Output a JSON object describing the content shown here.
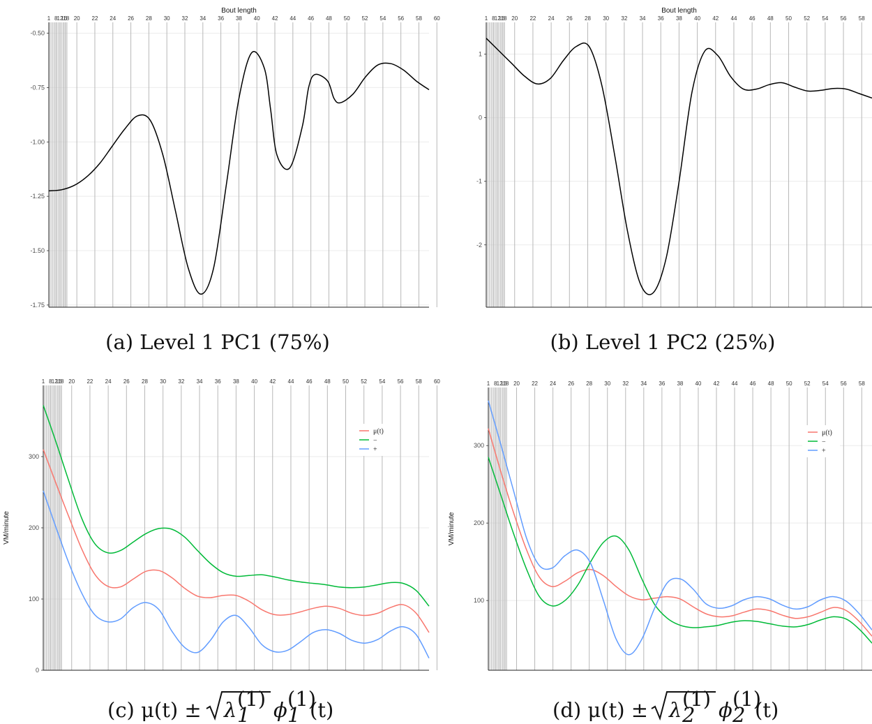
{
  "chart_data": [
    {
      "id": "a",
      "type": "line",
      "caption": "(a) Level 1 PC1 (75%)",
      "top_axis_label": "Bout length",
      "top_ticks": [
        1,
        8,
        12,
        16,
        18,
        20,
        22,
        24,
        26,
        28,
        30,
        32,
        34,
        36,
        38,
        40,
        42,
        44,
        46,
        48,
        50,
        52,
        54,
        56,
        58,
        60
      ],
      "y_ticks": [
        -1.75,
        -1.5,
        -1.25,
        -1.0,
        -0.75,
        -0.5
      ],
      "y_tick_labels": [
        "-1.75",
        "-1.50",
        "-1.25",
        "-1.00",
        "-0.75",
        "-0.50"
      ],
      "ylim": [
        -1.76,
        -0.45
      ],
      "xlim": [
        0,
        60
      ],
      "ylabel": "",
      "grid": true,
      "series": [
        {
          "color": "#000000",
          "x": [
            0,
            2,
            4,
            6,
            8,
            10,
            12,
            14,
            16,
            18,
            20,
            22,
            24,
            26,
            28,
            30,
            32,
            34,
            35,
            36,
            38,
            40,
            41,
            42,
            44,
            45,
            46,
            48,
            50,
            52,
            54,
            56,
            58,
            60
          ],
          "y": [
            -1.225,
            -1.22,
            -1.2,
            -1.16,
            -1.1,
            -1.02,
            -0.94,
            -0.88,
            -0.9,
            -1.06,
            -1.32,
            -1.58,
            -1.7,
            -1.58,
            -1.2,
            -0.8,
            -0.59,
            -0.66,
            -0.85,
            -1.06,
            -1.12,
            -0.93,
            -0.75,
            -0.69,
            -0.72,
            -0.8,
            -0.82,
            -0.78,
            -0.7,
            -0.645,
            -0.64,
            -0.67,
            -0.72,
            -0.76
          ]
        }
      ]
    },
    {
      "id": "b",
      "type": "line",
      "caption": "(b) Level 1 PC2 (25%)",
      "top_axis_label": "Bout length",
      "top_ticks": [
        1,
        8,
        12,
        16,
        18,
        20,
        22,
        24,
        26,
        28,
        30,
        32,
        34,
        36,
        38,
        40,
        42,
        44,
        46,
        48,
        50,
        52,
        54,
        56,
        58,
        60
      ],
      "y_ticks": [
        -2,
        -1,
        0,
        1
      ],
      "y_tick_labels": [
        "-2",
        "-1",
        "0",
        "1"
      ],
      "ylim": [
        -2.98,
        1.5
      ],
      "xlim": [
        0,
        60
      ],
      "ylabel": "",
      "grid": true,
      "series": [
        {
          "color": "#000000",
          "x": [
            0,
            2,
            4,
            6,
            8,
            10,
            12,
            14,
            16,
            18,
            20,
            22,
            24,
            26,
            28,
            30,
            32,
            34,
            36,
            38,
            40,
            42,
            44,
            46,
            48,
            50,
            52,
            54,
            56,
            58,
            60
          ],
          "y": [
            1.25,
            1.05,
            0.85,
            0.65,
            0.53,
            0.62,
            0.9,
            1.12,
            1.12,
            0.5,
            -0.6,
            -1.8,
            -2.62,
            -2.75,
            -2.2,
            -1.0,
            0.4,
            1.05,
            0.98,
            0.65,
            0.45,
            0.45,
            0.52,
            0.55,
            0.48,
            0.42,
            0.43,
            0.46,
            0.45,
            0.38,
            0.31
          ]
        }
      ]
    },
    {
      "id": "c",
      "type": "line",
      "caption_prefix": "(c) μ(t) ±",
      "caption_index": "1",
      "top_ticks": [
        1,
        8,
        12,
        16,
        18,
        20,
        22,
        24,
        26,
        28,
        30,
        32,
        34,
        36,
        38,
        40,
        42,
        44,
        46,
        48,
        50,
        52,
        54,
        56,
        58,
        60
      ],
      "y_ticks": [
        0,
        100,
        200,
        300
      ],
      "y_tick_labels": [
        "0",
        "100",
        "200",
        "300"
      ],
      "ylim": [
        0,
        400
      ],
      "xlim": [
        0,
        60
      ],
      "ylabel": "VM/minute",
      "grid": true,
      "legend": {
        "placement": "top-right",
        "entries": [
          "μ(t)",
          "−",
          "+"
        ]
      },
      "series": [
        {
          "name": "μ(t)",
          "color": "#f8766d",
          "x": [
            0,
            2,
            4,
            6,
            8,
            10,
            12,
            14,
            16,
            18,
            20,
            22,
            24,
            26,
            28,
            30,
            32,
            34,
            36,
            38,
            40,
            42,
            44,
            46,
            48,
            50,
            52,
            54,
            56,
            58,
            60
          ],
          "y": [
            310,
            262,
            215,
            170,
            135,
            118,
            117,
            128,
            139,
            140,
            130,
            115,
            104,
            102,
            105,
            105,
            97,
            85,
            78,
            78,
            82,
            87,
            90,
            87,
            80,
            77,
            80,
            88,
            92,
            80,
            53
          ]
        },
        {
          "name": "−",
          "color": "#00ba38",
          "x": [
            0,
            2,
            4,
            6,
            8,
            10,
            12,
            14,
            16,
            18,
            20,
            22,
            24,
            26,
            28,
            30,
            32,
            34,
            36,
            38,
            40,
            42,
            44,
            46,
            48,
            50,
            52,
            54,
            56,
            58,
            60
          ],
          "y": [
            372,
            320,
            265,
            213,
            178,
            165,
            168,
            180,
            192,
            199,
            198,
            187,
            168,
            150,
            137,
            132,
            133,
            134,
            131,
            127,
            124,
            122,
            120,
            117,
            116,
            117,
            120,
            123,
            122,
            112,
            90
          ]
        },
        {
          "name": "+",
          "color": "#619cff",
          "x": [
            0,
            2,
            4,
            6,
            8,
            10,
            12,
            14,
            16,
            18,
            20,
            22,
            24,
            26,
            28,
            30,
            32,
            34,
            36,
            38,
            40,
            42,
            44,
            46,
            48,
            50,
            52,
            54,
            56,
            58,
            60
          ],
          "y": [
            252,
            200,
            150,
            108,
            78,
            68,
            72,
            88,
            95,
            85,
            55,
            32,
            25,
            42,
            68,
            77,
            60,
            36,
            26,
            28,
            40,
            53,
            57,
            52,
            42,
            38,
            43,
            55,
            61,
            50,
            17
          ]
        }
      ]
    },
    {
      "id": "d",
      "type": "line",
      "caption_prefix": "(d) μ(t) ±",
      "caption_index": "2",
      "top_ticks": [
        1,
        8,
        12,
        16,
        18,
        20,
        22,
        24,
        26,
        28,
        30,
        32,
        34,
        36,
        38,
        40,
        42,
        44,
        46,
        48,
        50,
        52,
        54,
        56,
        58,
        60
      ],
      "y_ticks": [
        100,
        200,
        300
      ],
      "y_tick_labels": [
        "100",
        "200",
        "300"
      ],
      "ylim": [
        10,
        375
      ],
      "xlim": [
        0,
        60
      ],
      "ylabel": "VM/minute",
      "grid": true,
      "legend": {
        "placement": "top-right",
        "entries": [
          "μ(t)",
          "−",
          "+"
        ]
      },
      "series": [
        {
          "name": "μ(t)",
          "color": "#f8766d",
          "x": [
            0,
            2,
            4,
            6,
            8,
            10,
            12,
            14,
            16,
            18,
            20,
            22,
            24,
            26,
            28,
            30,
            32,
            34,
            36,
            38,
            40,
            42,
            44,
            46,
            48,
            50,
            52,
            54,
            56,
            58,
            60
          ],
          "y": [
            322,
            265,
            212,
            165,
            130,
            118,
            125,
            136,
            140,
            132,
            118,
            106,
            101,
            103,
            105,
            102,
            92,
            83,
            79,
            80,
            85,
            89,
            87,
            81,
            77,
            79,
            85,
            91,
            87,
            73,
            54
          ]
        },
        {
          "name": "−",
          "color": "#00ba38",
          "x": [
            0,
            2,
            4,
            6,
            8,
            10,
            12,
            14,
            16,
            18,
            20,
            22,
            24,
            26,
            28,
            30,
            32,
            34,
            36,
            38,
            40,
            42,
            44,
            46,
            48,
            50,
            52,
            54,
            56,
            58,
            60
          ],
          "y": [
            285,
            235,
            185,
            140,
            105,
            93,
            100,
            120,
            150,
            175,
            183,
            165,
            128,
            95,
            77,
            68,
            65,
            66,
            68,
            72,
            74,
            73,
            70,
            67,
            66,
            69,
            75,
            79,
            76,
            63,
            45
          ]
        },
        {
          "name": "+",
          "color": "#619cff",
          "x": [
            0,
            2,
            4,
            6,
            8,
            10,
            12,
            14,
            16,
            18,
            20,
            22,
            24,
            26,
            28,
            30,
            32,
            34,
            36,
            38,
            40,
            42,
            44,
            46,
            48,
            50,
            52,
            54,
            56,
            58,
            60
          ],
          "y": [
            358,
            300,
            240,
            180,
            145,
            142,
            158,
            165,
            148,
            100,
            50,
            30,
            50,
            90,
            123,
            128,
            115,
            96,
            90,
            93,
            101,
            105,
            102,
            94,
            89,
            92,
            101,
            105,
            99,
            83,
            62
          ]
        }
      ]
    }
  ]
}
